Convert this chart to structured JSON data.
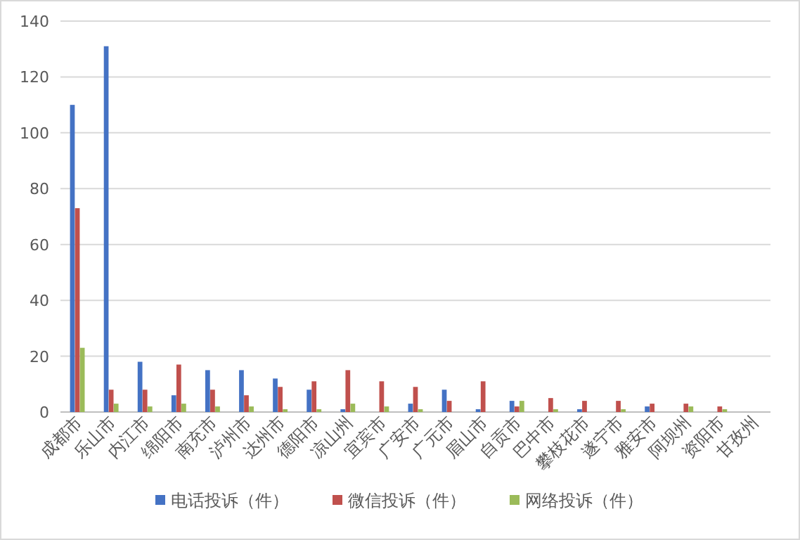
{
  "chart_data": {
    "type": "bar",
    "categories": [
      "成都市",
      "乐山市",
      "内江市",
      "绵阳市",
      "南充市",
      "泸州市",
      "达州市",
      "德阳市",
      "凉山州",
      "宜宾市",
      "广安市",
      "广元市",
      "眉山市",
      "自贡市",
      "巴中市",
      "攀枝花市",
      "遂宁市",
      "雅安市",
      "阿坝州",
      "资阳市",
      "甘孜州"
    ],
    "series": [
      {
        "name": "电话投诉（件）",
        "color": "#4472c4",
        "values": [
          110,
          131,
          18,
          6,
          15,
          15,
          12,
          8,
          1,
          0,
          3,
          8,
          1,
          4,
          0,
          1,
          0,
          2,
          0,
          0,
          0
        ]
      },
      {
        "name": "微信投诉（件）",
        "color": "#c0504d",
        "values": [
          73,
          8,
          8,
          17,
          8,
          6,
          9,
          11,
          15,
          11,
          9,
          4,
          11,
          2,
          5,
          4,
          4,
          3,
          3,
          2,
          0
        ]
      },
      {
        "name": "网络投诉（件）",
        "color": "#9bbb59",
        "values": [
          23,
          3,
          2,
          3,
          2,
          2,
          1,
          1,
          3,
          2,
          1,
          0,
          0,
          4,
          1,
          0,
          1,
          0,
          2,
          1,
          0
        ]
      }
    ],
    "ylim": [
      0,
      140
    ],
    "yticks": [
      0,
      20,
      40,
      60,
      80,
      100,
      120,
      140
    ],
    "grid": "y",
    "legend": "bottom"
  }
}
